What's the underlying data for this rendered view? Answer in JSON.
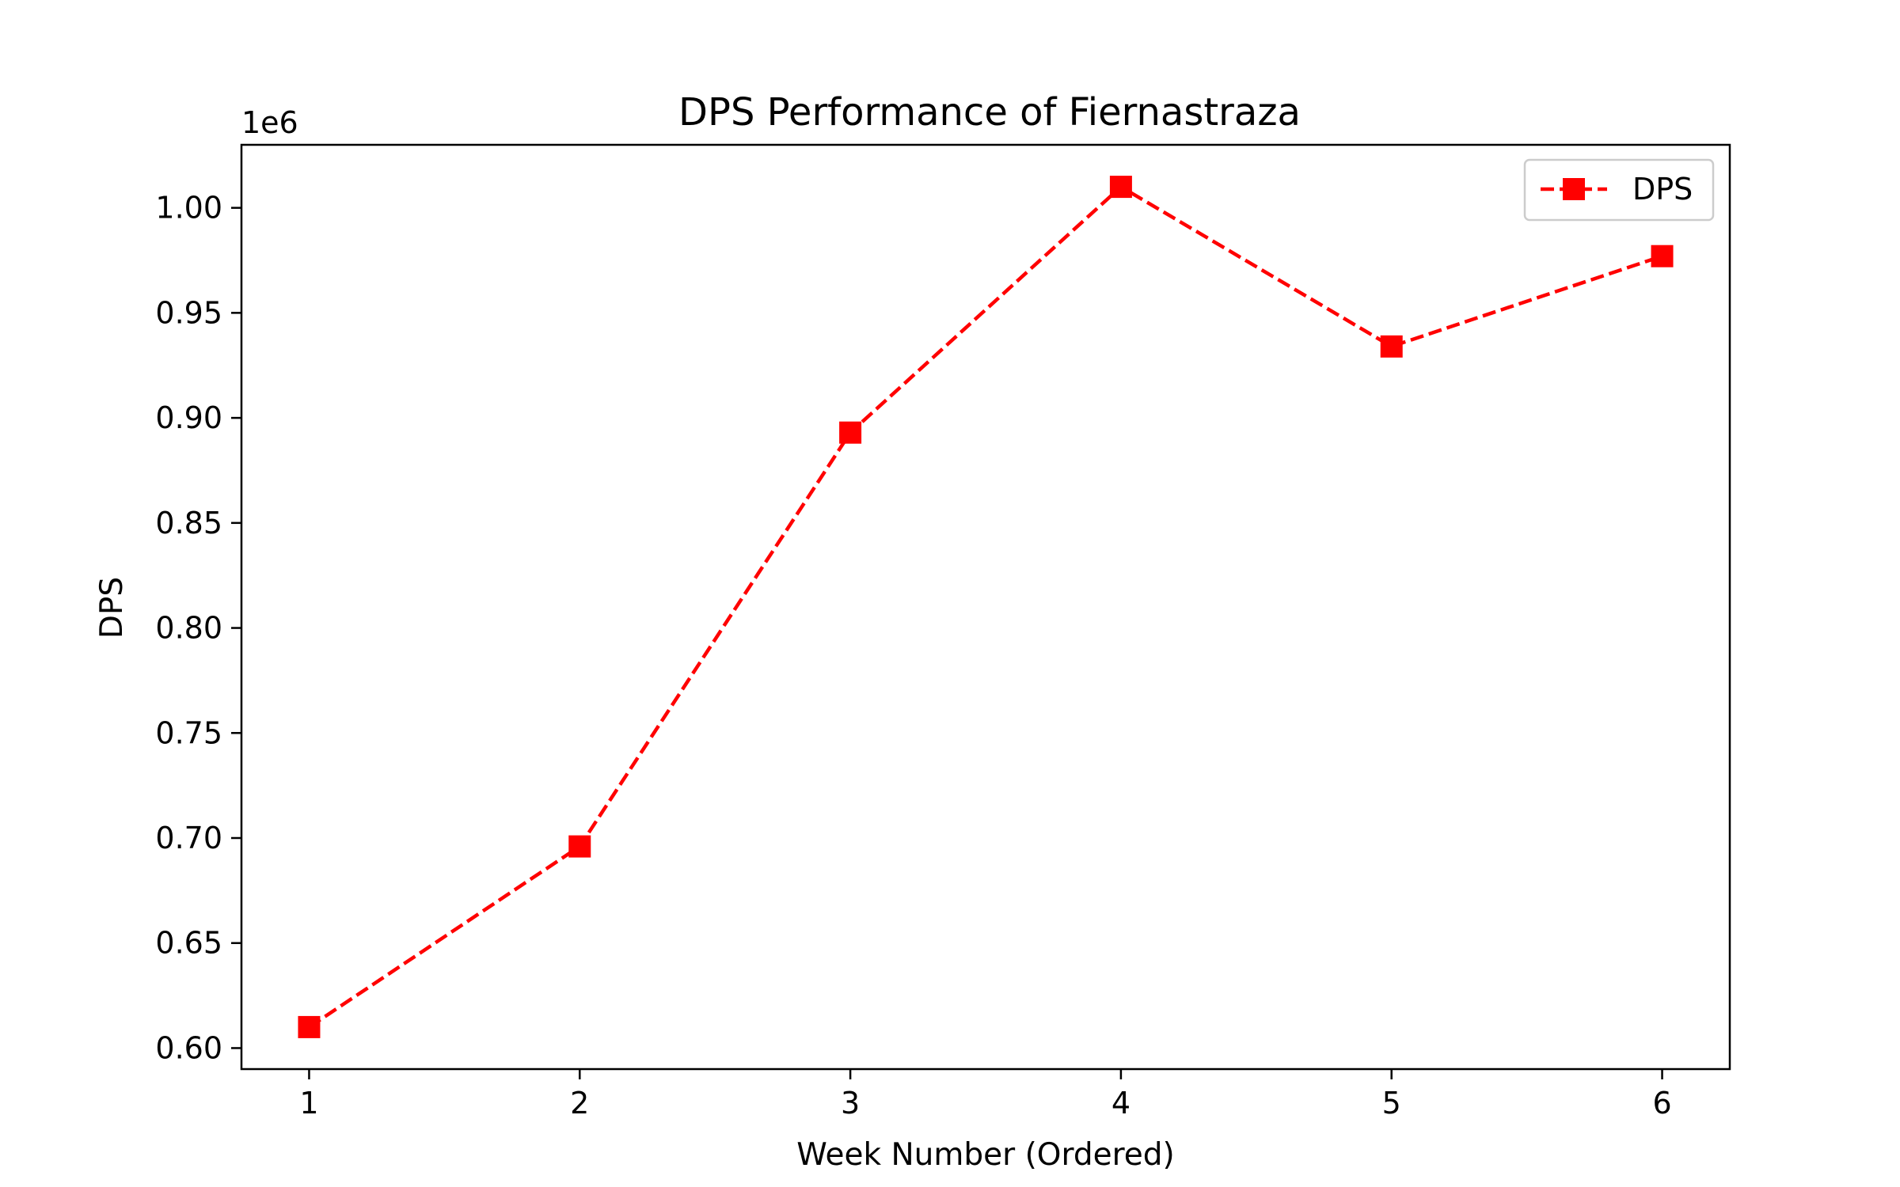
{
  "chart_data": {
    "type": "line",
    "title": "DPS Performance of Fiernastraza",
    "xlabel": "Week Number (Ordered)",
    "ylabel": "DPS",
    "y_offset_label": "1e6",
    "y_scale_factor": 1000000,
    "x": [
      1,
      2,
      3,
      4,
      5,
      6
    ],
    "x_ticks": [
      1,
      2,
      3,
      4,
      5,
      6
    ],
    "y_ticks": [
      0.6,
      0.65,
      0.7,
      0.75,
      0.8,
      0.85,
      0.9,
      0.95,
      1.0
    ],
    "xlim": [
      0.75,
      6.25
    ],
    "ylim": [
      590000,
      1030000
    ],
    "series": [
      {
        "name": "DPS",
        "color": "#ff0000",
        "line_style": "dashed",
        "marker": "square",
        "values": [
          610000,
          696000,
          893000,
          1010000,
          934000,
          977000
        ]
      }
    ],
    "legend": {
      "position": "top-right",
      "entries": [
        "DPS"
      ]
    },
    "grid": false
  }
}
